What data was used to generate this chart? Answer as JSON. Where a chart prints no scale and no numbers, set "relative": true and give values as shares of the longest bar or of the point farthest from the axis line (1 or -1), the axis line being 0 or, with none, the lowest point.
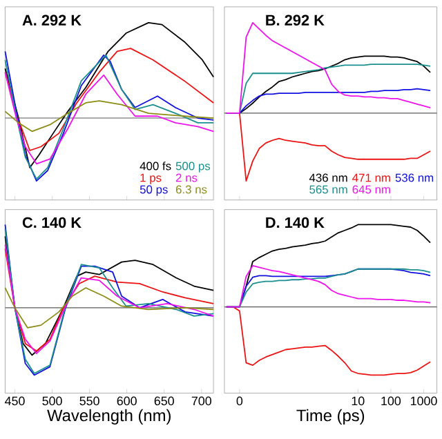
{
  "chart_data": [
    {
      "type": "line",
      "relative": true,
      "title": "A. 292 K",
      "xlim": [
        437,
        716
      ],
      "xticks": [
        450,
        500,
        550,
        600,
        650,
        700
      ],
      "tick_labels": false,
      "legend": "bottom right",
      "series": [
        {
          "name": "400 fs",
          "color": "#000000",
          "x": [
            437,
            455,
            470,
            482,
            503,
            521,
            545,
            575,
            599,
            629,
            647,
            677,
            701,
            716
          ],
          "values": [
            0.52,
            0,
            -0.52,
            -0.39,
            -0.14,
            0.07,
            0.32,
            0.7,
            0.89,
            1.0,
            0.98,
            0.8,
            0.61,
            0.43
          ]
        },
        {
          "name": "1 ps",
          "color": "#ee1111",
          "x": [
            437,
            455,
            470,
            485,
            509,
            533,
            563,
            587,
            605,
            635,
            677,
            716
          ],
          "values": [
            0.48,
            -0.02,
            -0.34,
            -0.3,
            -0.16,
            0.16,
            0.48,
            0.7,
            0.73,
            0.61,
            0.39,
            0.16
          ]
        },
        {
          "name": "50 ps",
          "color": "#1010e0",
          "x": [
            437,
            452,
            464,
            479,
            494,
            515,
            539,
            569,
            578,
            593,
            611,
            641,
            665,
            695,
            716
          ],
          "values": [
            0.7,
            0.07,
            -0.39,
            -0.66,
            -0.55,
            -0.16,
            0.34,
            0.66,
            0.59,
            0.3,
            0.11,
            0.23,
            0.11,
            0,
            -0.02
          ]
        },
        {
          "name": "500 ps",
          "color": "#1a8f8f",
          "x": [
            437,
            452,
            464,
            479,
            494,
            515,
            539,
            572,
            593,
            611,
            635,
            665,
            695,
            716
          ],
          "values": [
            0.61,
            0.02,
            -0.41,
            -0.64,
            -0.52,
            -0.11,
            0.39,
            0.66,
            0.3,
            0.09,
            0.14,
            0.05,
            -0.05,
            -0.05
          ]
        },
        {
          "name": "2 ns",
          "color": "#ee11ee",
          "x": [
            437,
            452,
            464,
            479,
            497,
            521,
            545,
            569,
            587,
            611,
            641,
            665,
            695,
            716
          ],
          "values": [
            0.48,
            0,
            -0.3,
            -0.48,
            -0.43,
            -0.11,
            0.25,
            0.45,
            0.25,
            0.02,
            0.02,
            -0.05,
            -0.09,
            -0.14
          ]
        },
        {
          "name": "6.3 ns",
          "color": "#8c8c14",
          "x": [
            437,
            455,
            473,
            497,
            521,
            545,
            563,
            593,
            629,
            677,
            716
          ],
          "values": [
            0.07,
            -0.05,
            -0.14,
            -0.07,
            0.05,
            0.16,
            0.18,
            0.14,
            0.05,
            0.02,
            0
          ]
        }
      ]
    },
    {
      "type": "line",
      "relative": true,
      "title": "B. 292 K",
      "tick_labels": false,
      "legend": "bottom right",
      "categories": [
        null,
        null,
        "0",
        null,
        null,
        null,
        null,
        null,
        null,
        null,
        null,
        null,
        null,
        null,
        null,
        null,
        null,
        null,
        null,
        null,
        "10",
        null,
        null,
        null,
        null,
        "100",
        null,
        null,
        null,
        null,
        "1000",
        null
      ],
      "series": [
        {
          "name": "436 nm",
          "color": "#000000",
          "values": [
            0,
            0,
            0,
            0.05,
            0.11,
            0.18,
            0.24,
            0.29,
            0.35,
            0.37,
            0.4,
            0.42,
            0.44,
            0.46,
            0.47,
            0.49,
            0.52,
            0.55,
            0.59,
            0.61,
            0.62,
            0.63,
            0.63,
            0.63,
            0.63,
            0.62,
            0.62,
            0.61,
            0.59,
            0.57,
            0.52,
            0.45
          ]
        },
        {
          "name": "471 nm",
          "color": "#ee1111",
          "values": [
            0,
            0,
            0,
            -0.75,
            -0.53,
            -0.39,
            -0.33,
            -0.3,
            -0.28,
            -0.3,
            -0.31,
            -0.32,
            -0.33,
            -0.35,
            -0.36,
            -0.36,
            -0.42,
            -0.46,
            -0.49,
            -0.5,
            -0.51,
            -0.51,
            -0.51,
            -0.51,
            -0.51,
            -0.51,
            -0.51,
            -0.51,
            -0.5,
            -0.5,
            -0.46,
            -0.42
          ]
        },
        {
          "name": "536 nm",
          "color": "#1010e0",
          "values": [
            0,
            0,
            0,
            0.08,
            0.14,
            0.19,
            0.21,
            0.21,
            0.22,
            0.22,
            0.22,
            0.22,
            0.23,
            0.23,
            0.23,
            0.23,
            0.23,
            0.23,
            0.23,
            0.23,
            0.23,
            0.23,
            0.24,
            0.24,
            0.25,
            0.25,
            0.25,
            0.26,
            0.26,
            0.27,
            0.26,
            0.25
          ]
        },
        {
          "name": "565 nm",
          "color": "#1a8f8f",
          "values": [
            0,
            0,
            0,
            0.33,
            0.44,
            0.44,
            0.44,
            0.44,
            0.44,
            0.44,
            0.44,
            0.45,
            0.46,
            0.47,
            0.48,
            0.5,
            0.51,
            0.52,
            0.53,
            0.53,
            0.53,
            0.53,
            0.54,
            0.54,
            0.54,
            0.54,
            0.54,
            0.54,
            0.54,
            0.54,
            0.53,
            0.52
          ]
        },
        {
          "name": "645 nm",
          "color": "#ee11ee",
          "values": [
            0,
            0,
            0,
            0.84,
            1.0,
            0.93,
            0.86,
            0.8,
            0.76,
            0.72,
            0.68,
            0.64,
            0.6,
            0.56,
            0.52,
            0.48,
            0.32,
            0.24,
            0.2,
            0.19,
            0.19,
            0.18,
            0.18,
            0.17,
            0.17,
            0.16,
            0.16,
            0.14,
            0.12,
            0.1,
            0.08,
            0.06
          ]
        }
      ]
    },
    {
      "type": "line",
      "relative": true,
      "title": "C. 140 K",
      "xlabel": "Wavelength (nm)",
      "xlim": [
        437,
        716
      ],
      "xticks": [
        450,
        500,
        550,
        600,
        650,
        700
      ],
      "tick_labels": "x",
      "series": [
        {
          "color": "#000000",
          "x": [
            437,
            450,
            461,
            473,
            491,
            515,
            533,
            545,
            563,
            593,
            611,
            635,
            666,
            690,
            716
          ],
          "values": [
            0.86,
            0,
            -0.43,
            -0.57,
            -0.43,
            0,
            0.38,
            0.43,
            0.4,
            0.55,
            0.57,
            0.52,
            0.36,
            0.26,
            0.21
          ]
        },
        {
          "color": "#ee1111",
          "x": [
            437,
            450,
            464,
            479,
            497,
            515,
            536,
            557,
            587,
            617,
            648,
            678,
            716
          ],
          "values": [
            0.71,
            0,
            -0.43,
            -0.52,
            -0.38,
            0,
            0.29,
            0.38,
            0.31,
            0.29,
            0.19,
            0.12,
            0.05
          ]
        },
        {
          "color": "#1010e0",
          "x": [
            437,
            450,
            464,
            476,
            497,
            518,
            539,
            557,
            581,
            593,
            617,
            648,
            678,
            716
          ],
          "values": [
            1.0,
            0,
            -0.67,
            -0.81,
            -0.71,
            0,
            0.5,
            0.5,
            0.43,
            0.14,
            0,
            0.1,
            -0.05,
            -0.1
          ]
        },
        {
          "color": "#1a8f8f",
          "x": [
            437,
            450,
            464,
            476,
            497,
            518,
            539,
            563,
            581,
            599,
            629,
            666,
            690,
            716
          ],
          "values": [
            0.95,
            0,
            -0.62,
            -0.79,
            -0.69,
            0.02,
            0.52,
            0.48,
            0.24,
            0.02,
            0.05,
            -0.02,
            -0.1,
            -0.07
          ]
        },
        {
          "color": "#ee11ee",
          "x": [
            437,
            450,
            464,
            479,
            497,
            518,
            539,
            563,
            587,
            617,
            654,
            690,
            716
          ],
          "values": [
            0.76,
            0,
            -0.38,
            -0.55,
            -0.4,
            0.02,
            0.36,
            0.33,
            0.14,
            0,
            0.05,
            -0.02,
            -0.1
          ]
        },
        {
          "color": "#8c8c14",
          "x": [
            437,
            450,
            467,
            485,
            509,
            527,
            545,
            569,
            593,
            629,
            678,
            716
          ],
          "values": [
            0.24,
            0,
            -0.24,
            -0.21,
            -0.05,
            0.14,
            0.24,
            0.14,
            0.02,
            -0.02,
            0,
            -0.02
          ]
        }
      ]
    },
    {
      "type": "line",
      "relative": true,
      "title": "D. 140 K",
      "xlabel": "Time (ps)",
      "tick_labels": "x",
      "categories": [
        null,
        null,
        "0",
        null,
        null,
        null,
        null,
        null,
        null,
        null,
        null,
        null,
        null,
        null,
        null,
        null,
        null,
        null,
        null,
        null,
        "10",
        null,
        null,
        null,
        null,
        "100",
        null,
        null,
        null,
        null,
        "1000",
        null
      ],
      "series": [
        {
          "color": "#000000",
          "values": [
            0,
            0,
            0,
            0.25,
            0.55,
            0.6,
            0.64,
            0.68,
            0.7,
            0.71,
            0.73,
            0.74,
            0.75,
            0.77,
            0.78,
            0.8,
            0.85,
            0.9,
            0.93,
            0.96,
            1.0,
            1.0,
            1.0,
            1.0,
            1.0,
            1.0,
            0.99,
            0.98,
            0.97,
            0.93,
            0.86,
            0.78
          ]
        },
        {
          "color": "#ee1111",
          "values": [
            0,
            0,
            -0.05,
            -0.68,
            -0.71,
            -0.65,
            -0.61,
            -0.58,
            -0.55,
            -0.52,
            -0.51,
            -0.5,
            -0.49,
            -0.49,
            -0.48,
            -0.47,
            -0.53,
            -0.6,
            -0.68,
            -0.78,
            -0.81,
            -0.82,
            -0.83,
            -0.83,
            -0.83,
            -0.82,
            -0.81,
            -0.81,
            -0.8,
            -0.77,
            -0.72,
            -0.67
          ]
        },
        {
          "color": "#1010e0",
          "values": [
            0,
            0,
            0,
            0.25,
            0.36,
            0.38,
            0.38,
            0.37,
            0.37,
            0.37,
            0.37,
            0.37,
            0.37,
            0.37,
            0.37,
            0.37,
            0.38,
            0.39,
            0.4,
            0.43,
            0.46,
            0.46,
            0.46,
            0.46,
            0.46,
            0.46,
            0.45,
            0.44,
            0.42,
            0.41,
            0.4,
            0.38
          ]
        },
        {
          "color": "#1a8f8f",
          "values": [
            0,
            0,
            0,
            0.18,
            0.28,
            0.3,
            0.31,
            0.31,
            0.32,
            0.32,
            0.33,
            0.33,
            0.34,
            0.34,
            0.35,
            0.35,
            0.37,
            0.39,
            0.4,
            0.43,
            0.46,
            0.46,
            0.46,
            0.46,
            0.46,
            0.46,
            0.46,
            0.46,
            0.45,
            0.45,
            0.44,
            0.42
          ]
        },
        {
          "color": "#ee11ee",
          "values": [
            0,
            0,
            0,
            0.37,
            0.5,
            0.48,
            0.46,
            0.44,
            0.43,
            0.41,
            0.39,
            0.37,
            0.35,
            0.33,
            0.31,
            0.27,
            0.2,
            0.16,
            0.14,
            0.12,
            0.1,
            0.1,
            0.1,
            0.09,
            0.09,
            0.09,
            0.08,
            0.08,
            0.07,
            0.06,
            0.06,
            0.05
          ]
        }
      ]
    }
  ]
}
